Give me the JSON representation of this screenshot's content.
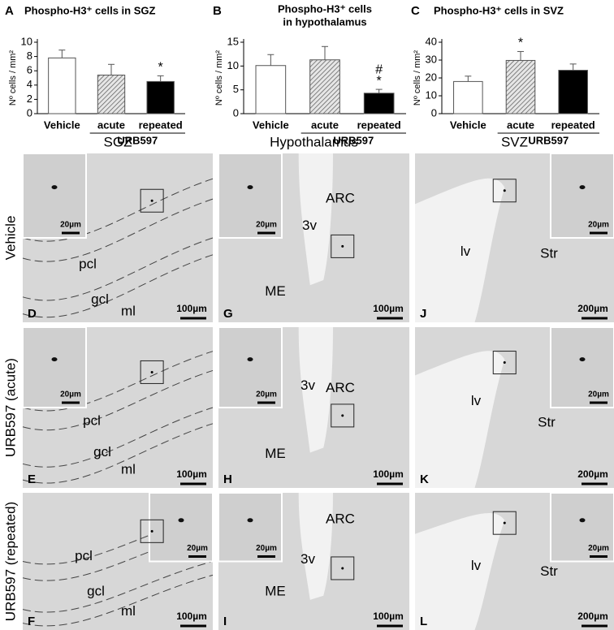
{
  "chart_data": [
    {
      "type": "bar",
      "panel": "A",
      "title": "Phospho-H3⁺ cells in SGZ",
      "ylabel": "Nº cells / mm²",
      "categories": [
        "Vehicle",
        "acute",
        "repeated"
      ],
      "group_label": "URB597",
      "values": [
        7.8,
        5.4,
        4.5
      ],
      "errors": [
        1.1,
        1.5,
        0.8
      ],
      "colors": [
        "#ffffff",
        "#9a9a9a",
        "#000000"
      ],
      "hatch": [
        false,
        true,
        false
      ],
      "markers": [
        [],
        [],
        [
          "*"
        ]
      ],
      "ylim": [
        0,
        10
      ],
      "yticks": [
        0,
        2,
        4,
        6,
        8,
        10
      ]
    },
    {
      "type": "bar",
      "panel": "B",
      "title": [
        "Phospho-H3⁺ cells",
        "in hypothalamus"
      ],
      "ylabel": "Nº cells / mm²",
      "categories": [
        "Vehicle",
        "acute",
        "repeated"
      ],
      "group_label": "URB597",
      "values": [
        10.1,
        11.3,
        4.3
      ],
      "errors": [
        2.3,
        2.8,
        0.8
      ],
      "colors": [
        "#ffffff",
        "#9a9a9a",
        "#000000"
      ],
      "hatch": [
        false,
        true,
        false
      ],
      "markers": [
        [],
        [],
        [
          "#",
          "*"
        ]
      ],
      "ylim": [
        0,
        15
      ],
      "yticks": [
        0,
        5,
        10,
        15
      ]
    },
    {
      "type": "bar",
      "panel": "C",
      "title": "Phospho-H3⁺ cells in SVZ",
      "ylabel": "Nº cells / mm²",
      "categories": [
        "Vehicle",
        "acute",
        "repeated"
      ],
      "group_label": "URB597",
      "values": [
        18,
        29.8,
        24.3
      ],
      "errors": [
        3,
        5,
        3.5
      ],
      "colors": [
        "#ffffff",
        "#9a9a9a",
        "#000000"
      ],
      "hatch": [
        false,
        true,
        false
      ],
      "markers": [
        [],
        [
          "*"
        ],
        []
      ],
      "ylim": [
        0,
        40
      ],
      "yticks": [
        0,
        10,
        20,
        30,
        40
      ]
    }
  ],
  "micrographs": {
    "columns": [
      "SGZ",
      "Hypothalamus",
      "SVZ"
    ],
    "rows": [
      "Vehicle",
      "URB597 (acute)",
      "URB597 (repeated)"
    ],
    "panels": [
      [
        {
          "letter": "D",
          "labels": [
            "pcl",
            "gcl",
            "ml"
          ],
          "scale": "100µm",
          "inset_scale": "20µm"
        },
        {
          "letter": "G",
          "labels": [
            "3v",
            "ARC",
            "ME"
          ],
          "scale": "100µm",
          "inset_scale": "20µm"
        },
        {
          "letter": "J",
          "labels": [
            "lv",
            "Str"
          ],
          "scale": "200µm",
          "inset_scale": "20µm"
        }
      ],
      [
        {
          "letter": "E",
          "labels": [
            "pcl",
            "gcl",
            "ml"
          ],
          "scale": "100µm",
          "inset_scale": "20µm"
        },
        {
          "letter": "H",
          "labels": [
            "3v",
            "ARC",
            "ME"
          ],
          "scale": "100µm",
          "inset_scale": "20µm"
        },
        {
          "letter": "K",
          "labels": [
            "lv",
            "Str"
          ],
          "scale": "200µm",
          "inset_scale": "20µm"
        }
      ],
      [
        {
          "letter": "F",
          "labels": [
            "pcl",
            "gcl",
            "ml"
          ],
          "scale": "100µm",
          "inset_scale": "20µm"
        },
        {
          "letter": "I",
          "labels": [
            "ARC",
            "3v",
            "ME"
          ],
          "scale": "100µm",
          "inset_scale": "20µm"
        },
        {
          "letter": "L",
          "labels": [
            "lv",
            "Str"
          ],
          "scale": "200µm",
          "inset_scale": "20µm"
        }
      ]
    ]
  }
}
